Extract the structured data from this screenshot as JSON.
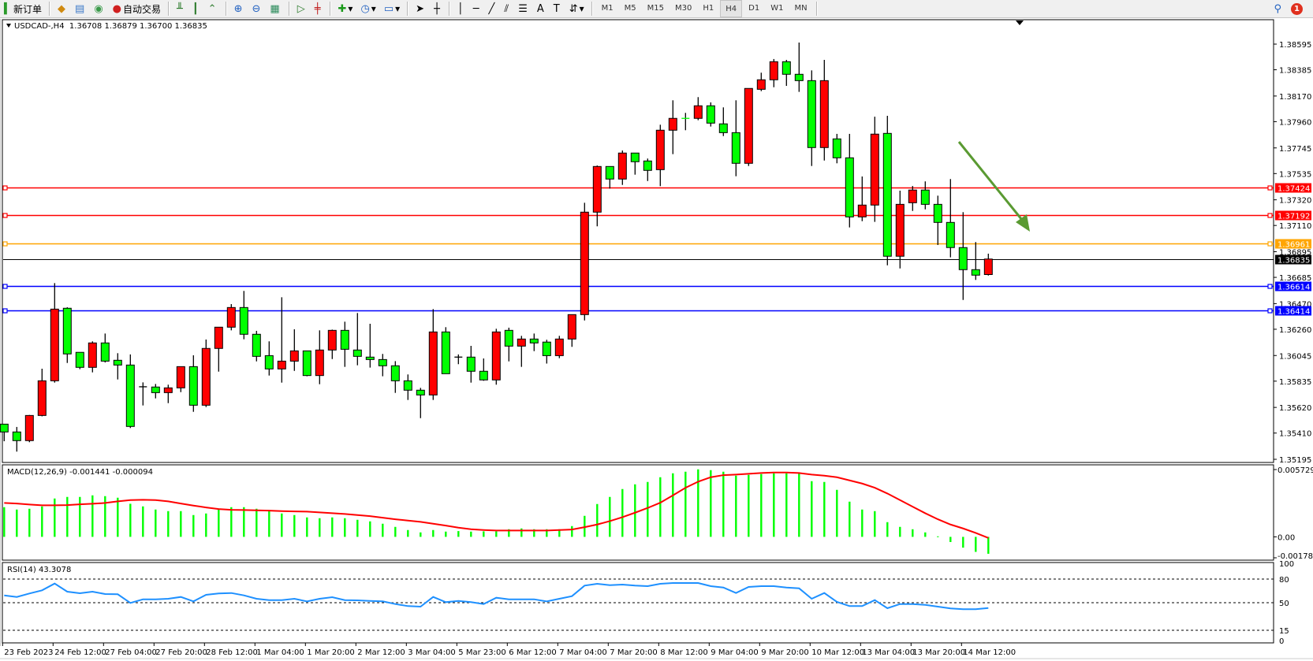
{
  "toolbar": {
    "new_order": "新订单",
    "auto_trading": "自动交易",
    "timeframes": [
      "M1",
      "M5",
      "M15",
      "M30",
      "H1",
      "H4",
      "D1",
      "W1",
      "MN"
    ],
    "active_timeframe": "H4",
    "notification_count": "1"
  },
  "header": {
    "symbol_line": "USDCAD-,H4  1.36708 1.36879 1.36700 1.36835",
    "macd_label": "MACD(12,26,9) -0.001441 -0.000094",
    "rsi_label": "RSI(14) 43.3078"
  },
  "colors": {
    "bull_candle": "#ff0000",
    "bear_candle": "#00ff00",
    "macd_histogram": "#00ff00",
    "macd_signal": "#ff0000",
    "rsi_line": "#1e90ff",
    "arrow": "#5a9a32"
  },
  "chart_data": [
    {
      "type": "candlestick",
      "symbol": "USDCAD-",
      "timeframe": "H4",
      "ylim": [
        1.35195,
        1.38595
      ],
      "y_ticks": [
        "1.38595",
        "1.38385",
        "1.38170",
        "1.37960",
        "1.37745",
        "1.37535",
        "1.37320",
        "1.37110",
        "1.36895",
        "1.36685",
        "1.36470",
        "1.36260",
        "1.36045",
        "1.35835",
        "1.35620",
        "1.35410",
        "1.35195"
      ],
      "x_tick_labels": [
        "23 Feb 2023",
        "24 Feb 12:00",
        "27 Feb 04:00",
        "27 Feb 20:00",
        "28 Feb 12:00",
        "1 Mar 04:00",
        "1 Mar 20:00",
        "2 Mar 12:00",
        "3 Mar 04:00",
        "5 Mar 23:00",
        "6 Mar 12:00",
        "7 Mar 04:00",
        "7 Mar 20:00",
        "8 Mar 12:00",
        "9 Mar 04:00",
        "9 Mar 20:00",
        "10 Mar 12:00",
        "13 Mar 04:00",
        "13 Mar 20:00",
        "14 Mar 12:00"
      ],
      "ohlc": [
        [
          1.35483,
          1.35483,
          1.35343,
          1.35419
        ],
        [
          1.35419,
          1.3546,
          1.35258,
          1.35348
        ],
        [
          1.35348,
          1.35558,
          1.35335,
          1.35554
        ],
        [
          1.35554,
          1.35937,
          1.35547,
          1.35838
        ],
        [
          1.35838,
          1.36638,
          1.35823,
          1.36425
        ],
        [
          1.36432,
          1.3644,
          1.35984,
          1.36058
        ],
        [
          1.36071,
          1.36071,
          1.35933,
          1.35948
        ],
        [
          1.35948,
          1.36161,
          1.35907,
          1.36148
        ],
        [
          1.36148,
          1.36225,
          1.35988,
          1.35999
        ],
        [
          1.36006,
          1.36064,
          1.35849,
          1.35967
        ],
        [
          1.35967,
          1.36054,
          1.35451,
          1.35464
        ],
        [
          1.35789,
          1.35825,
          1.35636,
          1.35789
        ],
        [
          1.35787,
          1.35812,
          1.35694,
          1.35741
        ],
        [
          1.35741,
          1.35806,
          1.35655,
          1.3578
        ],
        [
          1.3578,
          1.35954,
          1.35745,
          1.35954
        ],
        [
          1.35954,
          1.36047,
          1.35584,
          1.35638
        ],
        [
          1.35638,
          1.36176,
          1.35623,
          1.36103
        ],
        [
          1.36103,
          1.36277,
          1.35913,
          1.36277
        ],
        [
          1.36277,
          1.36466,
          1.36251,
          1.36438
        ],
        [
          1.36438,
          1.36574,
          1.36178,
          1.36219
        ],
        [
          1.36219,
          1.36247,
          1.35997,
          1.36038
        ],
        [
          1.36044,
          1.36161,
          1.35881,
          1.35935
        ],
        [
          1.35935,
          1.36522,
          1.35823,
          1.35999
        ],
        [
          1.35999,
          1.3626,
          1.35919,
          1.36083
        ],
        [
          1.36083,
          1.36083,
          1.35875,
          1.35881
        ],
        [
          1.35881,
          1.36251,
          1.3581,
          1.3609
        ],
        [
          1.3609,
          1.36257,
          1.36016,
          1.36251
        ],
        [
          1.36251,
          1.36322,
          1.35952,
          1.36096
        ],
        [
          1.3609,
          1.36393,
          1.35965,
          1.36038
        ],
        [
          1.36032,
          1.36305,
          1.35946,
          1.36012
        ],
        [
          1.36012,
          1.36058,
          1.35875,
          1.35961
        ],
        [
          1.35961,
          1.35999,
          1.35739,
          1.35838
        ],
        [
          1.35838,
          1.3589,
          1.35681,
          1.35761
        ],
        [
          1.35761,
          1.3578,
          1.35532,
          1.35722
        ],
        [
          1.35722,
          1.36425,
          1.35681,
          1.36238
        ],
        [
          1.36238,
          1.36277,
          1.35896,
          1.35896
        ],
        [
          1.36032,
          1.36054,
          1.35974,
          1.36032
        ],
        [
          1.36032,
          1.36124,
          1.35823,
          1.35916
        ],
        [
          1.35916,
          1.36021,
          1.35838,
          1.35845
        ],
        [
          1.35845,
          1.36264,
          1.35806,
          1.36238
        ],
        [
          1.36251,
          1.36273,
          1.35997,
          1.36122
        ],
        [
          1.36122,
          1.36206,
          1.35952,
          1.3618
        ],
        [
          1.3618,
          1.36225,
          1.36081,
          1.36148
        ],
        [
          1.36155,
          1.36174,
          1.35979,
          1.36044
        ],
        [
          1.36044,
          1.36206,
          1.36023,
          1.3618
        ],
        [
          1.3618,
          1.3638,
          1.36116,
          1.3638
        ],
        [
          1.3638,
          1.37296,
          1.36332,
          1.37219
        ],
        [
          1.37219,
          1.37601,
          1.37103,
          1.37593
        ],
        [
          1.37593,
          1.37593,
          1.37412,
          1.3749
        ],
        [
          1.3749,
          1.37724,
          1.37442,
          1.37703
        ],
        [
          1.37703,
          1.37703,
          1.37526,
          1.37632
        ],
        [
          1.37638,
          1.37658,
          1.37474,
          1.37561
        ],
        [
          1.37567,
          1.37935,
          1.37432,
          1.3789
        ],
        [
          1.3789,
          1.38135,
          1.37694,
          1.37987
        ],
        [
          1.37987,
          1.38032,
          1.3789,
          1.37987
        ],
        [
          1.37987,
          1.38161,
          1.37972,
          1.3809
        ],
        [
          1.3809,
          1.38118,
          1.3792,
          1.37948
        ],
        [
          1.37942,
          1.38077,
          1.37842,
          1.3787
        ],
        [
          1.3787,
          1.38135,
          1.37513,
          1.37619
        ],
        [
          1.37619,
          1.38232,
          1.37597,
          1.38232
        ],
        [
          1.38225,
          1.38361,
          1.3821,
          1.38303
        ],
        [
          1.38303,
          1.38473,
          1.38242,
          1.38451
        ],
        [
          1.38451,
          1.38466,
          1.38253,
          1.38348
        ],
        [
          1.38348,
          1.38608,
          1.38204,
          1.38296
        ],
        [
          1.38296,
          1.3838,
          1.37597,
          1.37748
        ],
        [
          1.37748,
          1.38466,
          1.37642,
          1.38296
        ],
        [
          1.37819,
          1.3786,
          1.37619,
          1.37664
        ],
        [
          1.37664,
          1.3786,
          1.37094,
          1.3718
        ],
        [
          1.3718,
          1.37511,
          1.37145,
          1.37277
        ],
        [
          1.37277,
          1.38001,
          1.37139,
          1.37858
        ],
        [
          1.37864,
          1.38008,
          1.36784,
          1.36858
        ],
        [
          1.36858,
          1.37395,
          1.36758,
          1.37283
        ],
        [
          1.37296,
          1.37433,
          1.37229,
          1.374
        ],
        [
          1.374,
          1.37471,
          1.37242,
          1.37283
        ],
        [
          1.37283,
          1.37354,
          1.3695,
          1.37135
        ],
        [
          1.37135,
          1.3749,
          1.36849,
          1.36929
        ],
        [
          1.36929,
          1.37219,
          1.365,
          1.36748
        ],
        [
          1.36748,
          1.36974,
          1.36664,
          1.36703
        ],
        [
          1.36708,
          1.36879,
          1.367,
          1.36835
        ]
      ],
      "horizontal_lines": [
        {
          "price": "1.37424",
          "color": "#ff0000"
        },
        {
          "price": "1.37192",
          "color": "#ff0000"
        },
        {
          "price": "1.36961",
          "color": "#ffa500"
        },
        {
          "price": "1.36614",
          "color": "#0000ff"
        },
        {
          "price": "1.36414",
          "color": "#0000ff"
        }
      ],
      "bid": {
        "price": "1.36835",
        "color": "#000000"
      }
    },
    {
      "type": "bar+line",
      "indicator": "MACD(12,26,9)",
      "ylim": [
        -0.001782,
        0.005729
      ],
      "y_tick_labels": [
        "0.005729",
        "0.00",
        "-0.001782"
      ],
      "histogram": [
        0.002527,
        0.002325,
        0.002393,
        0.002594,
        0.003265,
        0.003399,
        0.003399,
        0.003533,
        0.003466,
        0.003332,
        0.002817,
        0.002594,
        0.002325,
        0.002191,
        0.002191,
        0.001856,
        0.00199,
        0.002325,
        0.002527,
        0.002527,
        0.002393,
        0.002191,
        0.00199,
        0.001856,
        0.001655,
        0.001588,
        0.001655,
        0.001588,
        0.001453,
        0.001319,
        0.001118,
        0.00085,
        0.000581,
        0.00038,
        0.000581,
        0.000447,
        0.000492,
        0.000447,
        0.00047,
        0.00047,
        0.000648,
        0.000716,
        0.000648,
        0.000648,
        0.000648,
        0.000917,
        0.001789,
        0.002795,
        0.003399,
        0.00407,
        0.004472,
        0.004673,
        0.005076,
        0.005411,
        0.005545,
        0.005747,
        0.00568,
        0.005545,
        0.00521,
        0.005277,
        0.005344,
        0.005411,
        0.005411,
        0.005411,
        0.00474,
        0.004673,
        0.004002,
        0.002996,
        0.002325,
        0.002191,
        0.001252,
        0.00085,
        0.000648,
        0.00038,
        4.5e-05,
        -0.00044,
        -0.00092,
        -0.00128,
        -0.001441
      ],
      "signal": [
        0.002884,
        0.00284,
        0.00275,
        0.002683,
        0.002683,
        0.002706,
        0.002773,
        0.002817,
        0.002884,
        0.003019,
        0.00313,
        0.003153,
        0.00313,
        0.003019,
        0.00284,
        0.002661,
        0.002504,
        0.00237,
        0.002303,
        0.002281,
        0.002258,
        0.002236,
        0.002191,
        0.002169,
        0.002147,
        0.00208,
        0.002012,
        0.001945,
        0.001856,
        0.001766,
        0.001632,
        0.001498,
        0.001386,
        0.001275,
        0.001118,
        0.000961,
        0.000783,
        0.000648,
        0.000581,
        0.000537,
        0.000537,
        0.000537,
        0.000537,
        0.000537,
        0.000581,
        0.000626,
        0.000827,
        0.001051,
        0.001342,
        0.001677,
        0.002057,
        0.00246,
        0.002907,
        0.003533,
        0.004181,
        0.004696,
        0.005076,
        0.005255,
        0.005299,
        0.005366,
        0.005433,
        0.005478,
        0.005478,
        0.005433,
        0.005299,
        0.00521,
        0.005076,
        0.004807,
        0.004539,
        0.004181,
        0.003689,
        0.00313,
        0.002571,
        0.002012,
        0.001498,
        0.001051,
        0.000716,
        0.000335,
        -9.4e-05
      ]
    },
    {
      "type": "line",
      "indicator": "RSI(14)",
      "ylim": [
        0,
        100
      ],
      "levels": [
        80,
        50,
        15
      ],
      "y_tick_labels": [
        "100",
        "80",
        "50",
        "15",
        "0"
      ],
      "values": [
        59.3,
        57.3,
        61.7,
        65.7,
        74.3,
        64,
        62,
        64,
        61,
        60.7,
        49.7,
        54.3,
        54.3,
        55,
        57.3,
        51.7,
        60,
        61.7,
        62.3,
        59.3,
        55,
        53.3,
        53.3,
        55,
        51.7,
        55,
        57,
        53.3,
        53,
        52.3,
        51.7,
        48.3,
        45.7,
        45,
        57.3,
        50.7,
        52.3,
        50.7,
        48.3,
        56.3,
        54.3,
        54.3,
        54.3,
        51.7,
        55,
        58.3,
        71.7,
        74,
        72.3,
        73,
        71.7,
        71,
        74,
        75,
        75,
        75,
        71,
        69.3,
        62.3,
        70,
        71,
        71,
        69.3,
        68.3,
        55,
        62.3,
        51,
        45.7,
        45.7,
        53.3,
        43,
        48.3,
        48.3,
        47.3,
        45,
        42.7,
        41.7,
        41.7,
        43.3
      ]
    }
  ]
}
